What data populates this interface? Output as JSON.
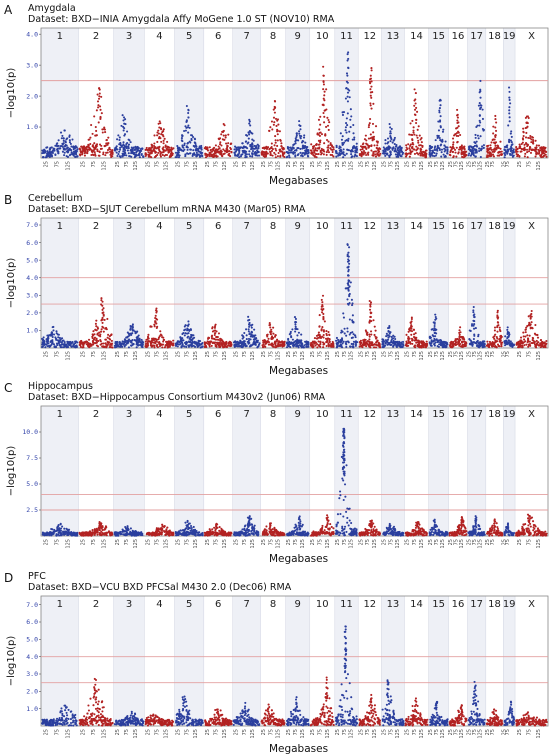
{
  "chart_data": [
    {
      "panel": "A",
      "type": "scatter",
      "tissue": "Amygdala",
      "dataset": "Dataset: BXD−INIA Amygdala Affy MoGene 1.0 ST (NOV10) RMA",
      "ylabel": "−log10(p)",
      "xlabel": "Megabases",
      "yticks": [
        1.0,
        2.0,
        3.0,
        4.0
      ],
      "ylim": [
        0,
        4.2
      ],
      "thresholds": [
        2.5
      ],
      "chromosomes": [
        "1",
        "2",
        "3",
        "4",
        "5",
        "6",
        "7",
        "8",
        "9",
        "10",
        "11",
        "12",
        "13",
        "14",
        "15",
        "16",
        "17",
        "18",
        "19",
        "X"
      ],
      "x_tick_labels": [
        "25",
        "75",
        "125"
      ],
      "chr_peaks": [
        0.9,
        2.4,
        1.4,
        1.2,
        1.8,
        1.1,
        1.2,
        2.0,
        1.2,
        3.0,
        3.6,
        3.0,
        1.0,
        2.3,
        2.0,
        1.6,
        2.5,
        1.4,
        2.3,
        1.3
      ],
      "colors": {
        "odd": "#2b3f9e",
        "even": "#b22222",
        "threshold": "#e3a0a0"
      }
    },
    {
      "panel": "B",
      "type": "scatter",
      "tissue": "Cerebellum",
      "dataset": "Dataset: BXD−SJUT Cerebellum mRNA M430 (Mar05) RMA",
      "ylabel": "−log10(p)",
      "xlabel": "Megabases",
      "yticks": [
        1.0,
        2.0,
        3.0,
        4.0,
        5.0,
        6.0,
        7.0
      ],
      "ylim": [
        0,
        7.4
      ],
      "thresholds": [
        2.5,
        4.0
      ],
      "chromosomes": [
        "1",
        "2",
        "3",
        "4",
        "5",
        "6",
        "7",
        "8",
        "9",
        "10",
        "11",
        "12",
        "13",
        "14",
        "15",
        "16",
        "17",
        "18",
        "19",
        "X"
      ],
      "x_tick_labels": [
        "25",
        "75",
        "125"
      ],
      "chr_peaks": [
        1.2,
        2.9,
        1.4,
        2.3,
        1.6,
        1.4,
        1.8,
        1.5,
        1.8,
        3.0,
        6.1,
        2.8,
        1.3,
        1.8,
        1.9,
        1.2,
        2.4,
        2.2,
        1.2,
        2.2
      ],
      "colors": {
        "odd": "#2b3f9e",
        "even": "#b22222",
        "threshold": "#e3a0a0"
      }
    },
    {
      "panel": "C",
      "type": "scatter",
      "tissue": "Hippocampus",
      "dataset": "Dataset: BXD−Hippocampus Consortium M430v2 (Jun06) RMA",
      "ylabel": "−log10(p)",
      "xlabel": "Megabases",
      "yticks": [
        2.5,
        5.0,
        7.5,
        10.0
      ],
      "ylim": [
        0,
        12.5
      ],
      "thresholds": [
        2.5,
        4.0
      ],
      "chromosomes": [
        "1",
        "2",
        "3",
        "4",
        "5",
        "6",
        "7",
        "8",
        "9",
        "10",
        "11",
        "12",
        "13",
        "14",
        "15",
        "16",
        "17",
        "18",
        "19",
        "X"
      ],
      "x_tick_labels": [
        "25",
        "75",
        "125"
      ],
      "chr_peaks": [
        1.2,
        1.3,
        1.0,
        1.1,
        1.5,
        1.2,
        2.0,
        1.3,
        2.0,
        2.0,
        11.0,
        1.5,
        1.2,
        1.4,
        1.6,
        1.9,
        2.0,
        1.7,
        1.3,
        2.2
      ],
      "colors": {
        "odd": "#2b3f9e",
        "even": "#b22222",
        "threshold": "#e3a0a0"
      }
    },
    {
      "panel": "D",
      "type": "scatter",
      "tissue": "PFC",
      "dataset": "Dataset: BXD−VCU BXD PFCSal M430 2.0 (Dec06) RMA",
      "ylabel": "−log10(p)",
      "xlabel": "Megabases",
      "yticks": [
        1.0,
        2.0,
        3.0,
        4.0,
        5.0,
        6.0,
        7.0
      ],
      "ylim": [
        0,
        7.5
      ],
      "thresholds": [
        2.5,
        4.0
      ],
      "chromosomes": [
        "1",
        "2",
        "3",
        "4",
        "5",
        "6",
        "7",
        "8",
        "9",
        "10",
        "11",
        "12",
        "13",
        "14",
        "15",
        "16",
        "17",
        "18",
        "19",
        "X"
      ],
      "x_tick_labels": [
        "25",
        "75",
        "125"
      ],
      "chr_peaks": [
        1.2,
        2.8,
        0.6,
        0.6,
        1.7,
        1.0,
        1.2,
        1.3,
        1.6,
        2.8,
        6.0,
        1.8,
        2.8,
        1.6,
        1.5,
        1.3,
        2.6,
        1.0,
        1.5,
        0.8
      ],
      "colors": {
        "odd": "#2b3f9e",
        "even": "#b22222",
        "threshold": "#e3a0a0"
      }
    }
  ]
}
